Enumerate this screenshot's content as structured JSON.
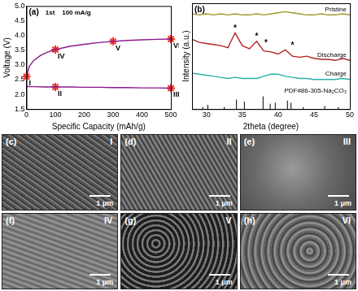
{
  "chart_data": [
    {
      "type": "line",
      "panel": "(a)",
      "annotation": "1st    100 mA/g",
      "xlabel": "Specific Capacity (mAh/g)",
      "ylabel": "Voltage (V)",
      "xlim": [
        0,
        500
      ],
      "xticks": [
        0,
        100,
        200,
        300,
        400,
        500
      ],
      "ylim": [
        1.5,
        5.0
      ],
      "yticks": [
        1.5,
        {
          "value": 2,
          "label": "2.0"
        },
        2.5,
        {
          "value": 3,
          "label": "3.0"
        },
        3.5,
        {
          "value": 4,
          "label": "4.0"
        },
        4.5,
        {
          "value": 5,
          "label": "5.0"
        }
      ],
      "grid": false,
      "series": [
        {
          "color": "#8b1a8b",
          "x": [
            0,
            2,
            10,
            30,
            60,
            100,
            150,
            200,
            250,
            300,
            350,
            400,
            450,
            500
          ],
          "values": [
            2.32,
            2.27,
            2.26,
            2.26,
            2.25,
            2.25,
            2.25,
            2.24,
            2.24,
            2.23,
            2.23,
            2.22,
            2.22,
            2.21
          ]
        },
        {
          "color": "#8b1a8b",
          "x": [
            0,
            10,
            25,
            50,
            75,
            100,
            150,
            200,
            250,
            300,
            350,
            400,
            450,
            500
          ],
          "values": [
            2.6,
            2.95,
            3.15,
            3.33,
            3.44,
            3.52,
            3.63,
            3.7,
            3.76,
            3.8,
            3.83,
            3.85,
            3.87,
            3.88
          ]
        }
      ],
      "markers": {
        "marker": "star",
        "color": "#e8312a",
        "points": [
          {
            "label": "I",
            "x": 0,
            "y": 2.6
          },
          {
            "label": "II",
            "x": 100,
            "y": 2.25
          },
          {
            "label": "III",
            "x": 500,
            "y": 2.21
          },
          {
            "label": "IV",
            "x": 100,
            "y": 3.52
          },
          {
            "label": "V",
            "x": 300,
            "y": 3.8
          },
          {
            "label": "VI",
            "x": 500,
            "y": 3.88
          }
        ]
      }
    },
    {
      "type": "line",
      "panel": "(b)",
      "xlabel": "2theta (degree)",
      "ylabel": "Intensity (a.u.)",
      "xlim": [
        28,
        50
      ],
      "xticks": [
        30,
        35,
        40,
        45,
        50
      ],
      "ylim": [
        0,
        100
      ],
      "tick_labels": "x",
      "grid": false,
      "x": [
        28,
        29,
        30,
        31,
        32,
        33,
        34,
        35,
        36,
        37,
        38,
        39,
        40,
        41,
        42,
        43,
        44,
        45,
        46,
        47,
        48,
        49,
        50
      ],
      "series": [
        {
          "name": "Pristine",
          "color": "#9a9a2a",
          "values": [
            90,
            89,
            90,
            89,
            90,
            89,
            90,
            89,
            89,
            90,
            89,
            90,
            91,
            92,
            91,
            90,
            89,
            89,
            90,
            89,
            89,
            90,
            89
          ]
        },
        {
          "name": "Discharge",
          "color": "#b22222",
          "values": [
            66,
            63,
            62,
            61,
            60,
            58,
            72,
            60,
            57,
            64,
            55,
            54,
            52,
            56,
            50,
            49,
            50,
            48,
            47,
            47,
            46,
            48,
            46
          ]
        },
        {
          "name": "Charge",
          "color": "#2ab0aa",
          "values": [
            34,
            33,
            32,
            31,
            30,
            29,
            30,
            29,
            29,
            29,
            31,
            33,
            33,
            31,
            30,
            29,
            29,
            28,
            28,
            28,
            28,
            29,
            28
          ]
        },
        {
          "name": "PDF#86-305-Na₂CO₃",
          "color": "#000000",
          "type": "stem",
          "x": [
            29.5,
            30.2,
            32.5,
            34.2,
            35.3,
            37.9,
            38.9,
            39.6,
            41.3,
            41.8,
            43.5,
            46.5,
            48.4
          ],
          "values": [
            2,
            4,
            2,
            9,
            7,
            12,
            5,
            6,
            8,
            6,
            2,
            3,
            2
          ]
        }
      ],
      "annotations": [
        {
          "text": "*",
          "x": 34,
          "y": 76
        },
        {
          "text": "*",
          "x": 37,
          "y": 68
        },
        {
          "text": "*",
          "x": 38.3,
          "y": 62
        },
        {
          "text": "*",
          "x": 42,
          "y": 60
        }
      ]
    }
  ],
  "images": [
    {
      "panel": "(c)",
      "stage": "I",
      "scale_bar": "1 μm"
    },
    {
      "panel": "(d)",
      "stage": "II",
      "scale_bar": "1 μm"
    },
    {
      "panel": "(e)",
      "stage": "III",
      "scale_bar": "1 μm"
    },
    {
      "panel": "(f)",
      "stage": "IV",
      "scale_bar": "1 μm"
    },
    {
      "panel": "(g)",
      "stage": "V",
      "scale_bar": "1 μm"
    },
    {
      "panel": "(h)",
      "stage": "VI",
      "scale_bar": "1 μm"
    }
  ]
}
